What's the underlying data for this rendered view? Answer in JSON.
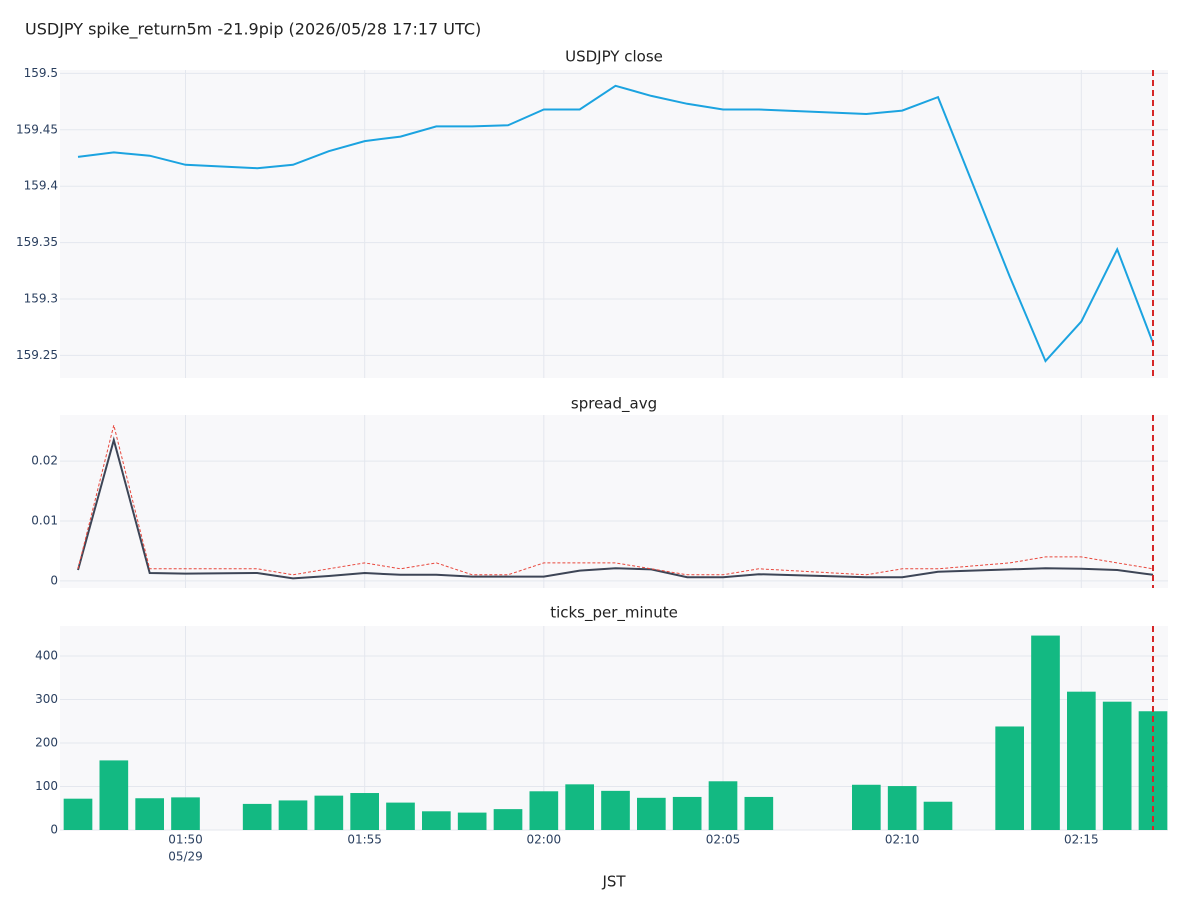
{
  "title": "USDJPY spike_return5m -21.9pip (2026/05/28 17:17 UTC)",
  "x_axis_label": "JST",
  "x_date_label": "05/29",
  "xlim": [
    "01:47",
    "02:17"
  ],
  "xticks": [
    "01:50",
    "01:55",
    "02:00",
    "02:05",
    "02:10",
    "02:15"
  ],
  "vline": "02:17",
  "vline_color": "#d62728",
  "chart_data": [
    {
      "type": "line",
      "title": "USDJPY close",
      "x": [
        "01:47",
        "01:48",
        "01:49",
        "01:50",
        "01:52",
        "01:53",
        "01:54",
        "01:55",
        "01:56",
        "01:57",
        "01:58",
        "01:59",
        "02:00",
        "02:01",
        "02:02",
        "02:03",
        "02:04",
        "02:05",
        "02:06",
        "02:09",
        "02:10",
        "02:11",
        "02:13",
        "02:14",
        "02:15",
        "02:16",
        "02:17"
      ],
      "series": [
        {
          "color": "#1ba3e0",
          "dash": false,
          "values": [
            159.426,
            159.43,
            159.427,
            159.419,
            159.416,
            159.419,
            159.431,
            159.44,
            159.444,
            159.453,
            159.453,
            159.454,
            159.468,
            159.468,
            159.489,
            159.48,
            159.473,
            159.468,
            159.468,
            159.464,
            159.467,
            159.479,
            159.32,
            159.245,
            159.28,
            159.344,
            159.261
          ]
        }
      ],
      "ylim": [
        159.23,
        159.503
      ],
      "yticks": [
        159.25,
        159.3,
        159.35,
        159.4,
        159.45,
        159.5
      ],
      "grid": true
    },
    {
      "type": "line",
      "title": "spread_avg",
      "x": [
        "01:47",
        "01:48",
        "01:49",
        "01:50",
        "01:52",
        "01:53",
        "01:54",
        "01:55",
        "01:56",
        "01:57",
        "01:58",
        "01:59",
        "02:00",
        "02:01",
        "02:02",
        "02:03",
        "02:04",
        "02:05",
        "02:06",
        "02:09",
        "02:10",
        "02:11",
        "02:13",
        "02:14",
        "02:15",
        "02:16",
        "02:17"
      ],
      "series": [
        {
          "color": "#3d4556",
          "dash": false,
          "values": [
            0.0018,
            0.0235,
            0.0013,
            0.0012,
            0.0013,
            0.0004,
            0.0008,
            0.0013,
            0.001,
            0.001,
            0.0007,
            0.0007,
            0.0007,
            0.0017,
            0.0021,
            0.0019,
            0.0006,
            0.0006,
            0.0011,
            0.0006,
            0.0006,
            0.0015,
            0.0019,
            0.0021,
            0.002,
            0.0018,
            0.001
          ]
        },
        {
          "color": "#e8473c",
          "dash": true,
          "values": [
            0.002,
            0.026,
            0.002,
            0.002,
            0.002,
            0.001,
            0.002,
            0.003,
            0.002,
            0.003,
            0.001,
            0.001,
            0.003,
            0.003,
            0.003,
            0.002,
            0.001,
            0.001,
            0.002,
            0.001,
            0.002,
            0.002,
            0.003,
            0.004,
            0.004,
            0.003,
            0.002
          ]
        }
      ],
      "ylim": [
        -0.0012,
        0.0277
      ],
      "yticks": [
        0,
        0.01,
        0.02
      ],
      "grid": true
    },
    {
      "type": "bar",
      "title": "ticks_per_minute",
      "x": [
        "01:47",
        "01:48",
        "01:49",
        "01:50",
        "01:52",
        "01:53",
        "01:54",
        "01:55",
        "01:56",
        "01:57",
        "01:58",
        "01:59",
        "02:00",
        "02:01",
        "02:02",
        "02:03",
        "02:04",
        "02:05",
        "02:06",
        "02:09",
        "02:10",
        "02:11",
        "02:13",
        "02:14",
        "02:15",
        "02:16",
        "02:17"
      ],
      "series": [
        {
          "color": "#13b982",
          "values": [
            72,
            160,
            73,
            75,
            60,
            68,
            79,
            85,
            63,
            43,
            40,
            48,
            89,
            105,
            90,
            74,
            76,
            112,
            76,
            104,
            101,
            65,
            238,
            447,
            318,
            295,
            273
          ]
        }
      ],
      "ylim": [
        0,
        469
      ],
      "yticks": [
        0,
        100,
        200,
        300,
        400
      ],
      "grid": true
    }
  ]
}
